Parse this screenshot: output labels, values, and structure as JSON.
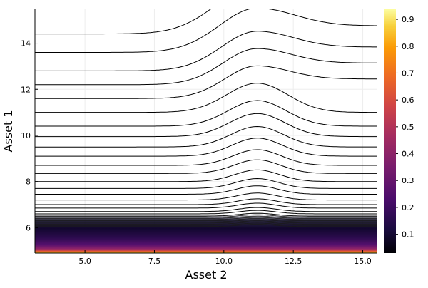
{
  "chart_data": {
    "type": "contour",
    "xlabel": "Asset 2",
    "ylabel": "Asset 1",
    "xlim": [
      3.2,
      15.5
    ],
    "ylim": [
      4.9,
      15.5
    ],
    "xticks": [
      5.0,
      7.5,
      10.0,
      12.5,
      15.0
    ],
    "xtick_labels": [
      "5.0",
      "7.5",
      "10.0",
      "12.5",
      "15.0"
    ],
    "yticks": [
      6,
      8,
      10,
      12,
      14
    ],
    "ytick_labels": [
      "6",
      "8",
      "10",
      "12",
      "14"
    ],
    "grid": true,
    "colorbar": {
      "range": [
        0.03,
        0.94
      ],
      "ticks": [
        0.1,
        0.2,
        0.3,
        0.4,
        0.5,
        0.6,
        0.7,
        0.8,
        0.9
      ],
      "tick_labels": [
        "0.1",
        "0.2",
        "0.3",
        "0.4",
        "0.5",
        "0.6",
        "0.7",
        "0.8",
        "0.9"
      ],
      "colormap": "inferno"
    },
    "contour_levels_y_at_left_edge": [
      14.4,
      13.6,
      12.8,
      12.2,
      11.6,
      11.0,
      10.4,
      9.95,
      9.5,
      9.1,
      8.7,
      8.35,
      8.0,
      7.7,
      7.45,
      7.2,
      7.0,
      6.85,
      6.7,
      6.6,
      6.5
    ],
    "bump_center_x": 11.2,
    "colors": {
      "contour_line": "#000000",
      "background": "#ffffff",
      "grid": "#ededed",
      "band_dark": "#0a0725",
      "band_mid": "#56106e",
      "band_bright": "#f5d746"
    }
  }
}
